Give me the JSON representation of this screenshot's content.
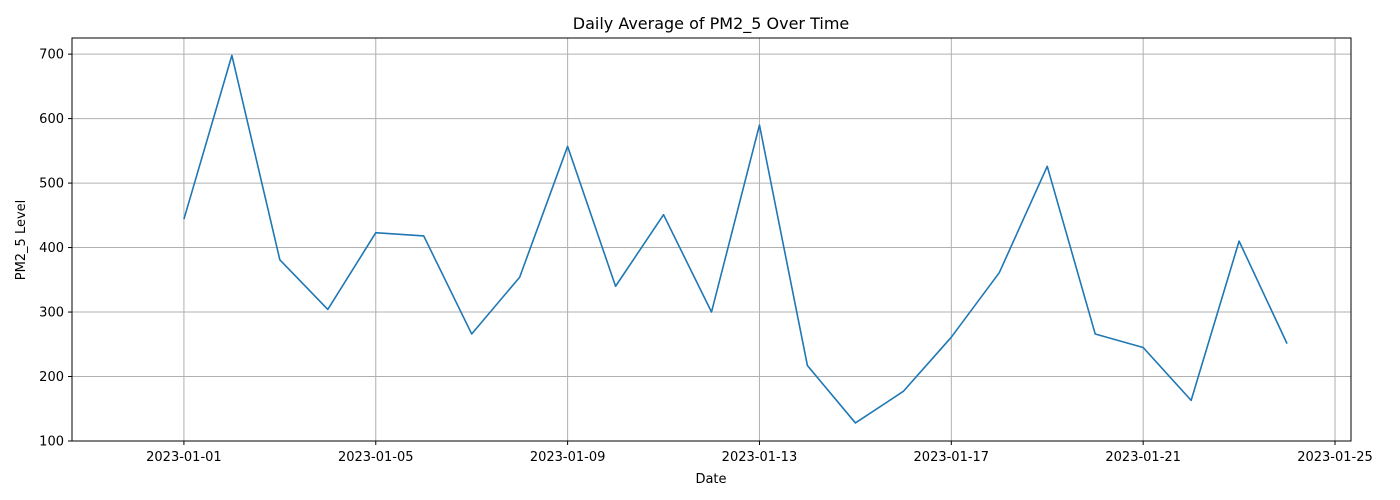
{
  "chart_data": {
    "type": "line",
    "title": "Daily Average of PM2_5 Over Time",
    "xlabel": "Date",
    "ylabel": "PM2_5 Level",
    "grid": true,
    "line_color": "#1f77b4",
    "xlim": [
      "2022-12-29T16:00",
      "2023-01-25T08:00"
    ],
    "ylim": [
      100,
      725
    ],
    "x_ticks": [
      "2023-01-01",
      "2023-01-05",
      "2023-01-09",
      "2023-01-13",
      "2023-01-17",
      "2023-01-21",
      "2023-01-25"
    ],
    "y_ticks": [
      100,
      200,
      300,
      400,
      500,
      600,
      700
    ],
    "series": [
      {
        "x": [
          "2023-01-01",
          "2023-01-02",
          "2023-01-03",
          "2023-01-04",
          "2023-01-05",
          "2023-01-06",
          "2023-01-07",
          "2023-01-08",
          "2023-01-09",
          "2023-01-10",
          "2023-01-11",
          "2023-01-12",
          "2023-01-13",
          "2023-01-14",
          "2023-01-15",
          "2023-01-16",
          "2023-01-17",
          "2023-01-18",
          "2023-01-19",
          "2023-01-20",
          "2023-01-21",
          "2023-01-22",
          "2023-01-23",
          "2023-01-24"
        ],
        "y": [
          444,
          698,
          381,
          304,
          423,
          418,
          266,
          354,
          557,
          340,
          451,
          300,
          590,
          217,
          128,
          177,
          261,
          361,
          526,
          266,
          245,
          163,
          410,
          251
        ]
      }
    ]
  }
}
